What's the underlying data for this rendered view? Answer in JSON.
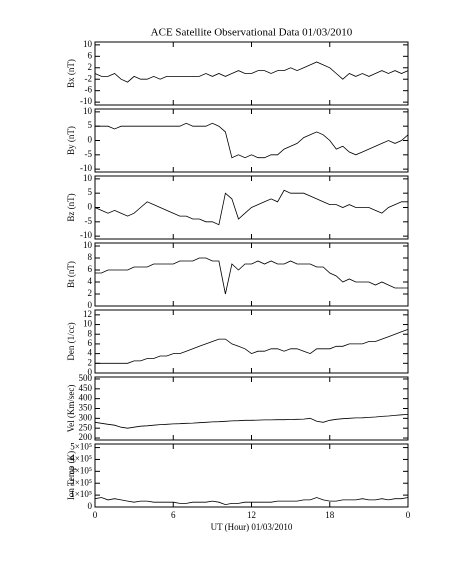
{
  "chart_data": [
    {
      "type": "line",
      "title": "ACE Satellite Observational Data   01/03/2010",
      "ylabel": "Bx (nT)",
      "ylim": [
        -11,
        11
      ],
      "yticks": [
        -10,
        -6,
        -2,
        2,
        6,
        10
      ],
      "x": [
        0,
        0.5,
        1,
        1.5,
        2,
        2.5,
        3,
        3.5,
        4,
        4.5,
        5,
        5.5,
        6,
        6.5,
        7,
        7.5,
        8,
        8.5,
        9,
        9.5,
        10,
        10.5,
        11,
        11.5,
        12,
        12.5,
        13,
        13.5,
        14,
        14.5,
        15,
        15.5,
        16,
        16.5,
        17,
        17.5,
        18,
        18.5,
        19,
        19.5,
        20,
        20.5,
        21,
        21.5,
        22,
        22.5,
        23,
        23.5,
        24
      ],
      "series": [
        {
          "name": "Bx",
          "color": "#000000",
          "values": [
            0,
            -1,
            -1,
            0,
            -2,
            -3,
            -1,
            -2,
            -2,
            -1,
            -2,
            -1,
            -1,
            -1,
            -1,
            -1,
            -1,
            0,
            -1,
            0,
            -1,
            0,
            1,
            0,
            0,
            1,
            1,
            0,
            1,
            1,
            2,
            1,
            2,
            3,
            4,
            3,
            2,
            0,
            -2,
            0,
            -1,
            0,
            -1,
            0,
            1,
            0,
            1,
            0,
            1
          ]
        }
      ]
    },
    {
      "type": "line",
      "ylabel": "By (nT)",
      "ylim": [
        -11,
        11
      ],
      "yticks": [
        -10,
        -5,
        0,
        5,
        10
      ],
      "x": [
        0,
        0.5,
        1,
        1.5,
        2,
        2.5,
        3,
        3.5,
        4,
        4.5,
        5,
        5.5,
        6,
        6.5,
        7,
        7.5,
        8,
        8.5,
        9,
        9.5,
        10,
        10.5,
        11,
        11.5,
        12,
        12.5,
        13,
        13.5,
        14,
        14.5,
        15,
        15.5,
        16,
        16.5,
        17,
        17.5,
        18,
        18.5,
        19,
        19.5,
        20,
        20.5,
        21,
        21.5,
        22,
        22.5,
        23,
        23.5,
        24
      ],
      "series": [
        {
          "name": "By",
          "color": "#000000",
          "values": [
            5,
            5,
            5,
            4,
            5,
            5,
            5,
            5,
            5,
            5,
            5,
            5,
            5,
            5,
            6,
            5,
            5,
            5,
            6,
            5,
            3,
            -6,
            -5,
            -6,
            -5,
            -6,
            -6,
            -5,
            -5,
            -3,
            -2,
            -1,
            1,
            2,
            3,
            2,
            0,
            -3,
            -2,
            -4,
            -5,
            -4,
            -3,
            -2,
            -1,
            0,
            -1,
            0,
            2
          ]
        }
      ]
    },
    {
      "type": "line",
      "ylabel": "Bz (nT)",
      "ylim": [
        -11,
        11
      ],
      "yticks": [
        -10,
        -5,
        0,
        5,
        10
      ],
      "x": [
        0,
        0.5,
        1,
        1.5,
        2,
        2.5,
        3,
        3.5,
        4,
        4.5,
        5,
        5.5,
        6,
        6.5,
        7,
        7.5,
        8,
        8.5,
        9,
        9.5,
        10,
        10.5,
        11,
        11.5,
        12,
        12.5,
        13,
        13.5,
        14,
        14.5,
        15,
        15.5,
        16,
        16.5,
        17,
        17.5,
        18,
        18.5,
        19,
        19.5,
        20,
        20.5,
        21,
        21.5,
        22,
        22.5,
        23,
        23.5,
        24
      ],
      "series": [
        {
          "name": "Bz",
          "color": "#000000",
          "values": [
            0,
            -1,
            -2,
            -1,
            -2,
            -3,
            -2,
            0,
            2,
            1,
            0,
            -1,
            -2,
            -3,
            -3,
            -4,
            -4,
            -5,
            -5,
            -6,
            5,
            3,
            -4,
            -2,
            0,
            1,
            2,
            3,
            2,
            6,
            5,
            5,
            5,
            4,
            3,
            2,
            1,
            1,
            0,
            1,
            0,
            0,
            0,
            -1,
            -2,
            0,
            1,
            2,
            2
          ]
        }
      ]
    },
    {
      "type": "line",
      "ylabel": "Bt (nT)",
      "ylim": [
        0,
        10.5
      ],
      "yticks": [
        0,
        2,
        4,
        6,
        8,
        10
      ],
      "x": [
        0,
        0.5,
        1,
        1.5,
        2,
        2.5,
        3,
        3.5,
        4,
        4.5,
        5,
        5.5,
        6,
        6.5,
        7,
        7.5,
        8,
        8.5,
        9,
        9.5,
        10,
        10.5,
        11,
        11.5,
        12,
        12.5,
        13,
        13.5,
        14,
        14.5,
        15,
        15.5,
        16,
        16.5,
        17,
        17.5,
        18,
        18.5,
        19,
        19.5,
        20,
        20.5,
        21,
        21.5,
        22,
        22.5,
        23,
        23.5,
        24
      ],
      "series": [
        {
          "name": "Bt",
          "color": "#000000",
          "values": [
            5.5,
            5.5,
            6,
            6,
            6,
            6,
            6.5,
            6.5,
            6.5,
            7,
            7,
            7,
            7,
            7.5,
            7.5,
            7.5,
            8,
            8,
            7.5,
            7.5,
            2,
            7,
            6,
            7,
            7,
            7.5,
            7,
            7.5,
            7,
            7,
            7.5,
            7,
            7,
            7,
            6.5,
            6.5,
            5.5,
            5,
            4,
            4.5,
            4,
            4,
            4,
            3.5,
            4,
            3.5,
            3,
            3,
            3
          ]
        }
      ]
    },
    {
      "type": "line",
      "ylabel": "Den (1/cc)",
      "ylim": [
        0,
        13
      ],
      "yticks": [
        0,
        2,
        4,
        6,
        8,
        10,
        12
      ],
      "x": [
        0,
        0.5,
        1,
        1.5,
        2,
        2.5,
        3,
        3.5,
        4,
        4.5,
        5,
        5.5,
        6,
        6.5,
        7,
        7.5,
        8,
        8.5,
        9,
        9.5,
        10,
        10.5,
        11,
        11.5,
        12,
        12.5,
        13,
        13.5,
        14,
        14.5,
        15,
        15.5,
        16,
        16.5,
        17,
        17.5,
        18,
        18.5,
        19,
        19.5,
        20,
        20.5,
        21,
        21.5,
        22,
        22.5,
        23,
        23.5,
        24
      ],
      "series": [
        {
          "name": "Den",
          "color": "#000000",
          "values": [
            2,
            2,
            2,
            2,
            2,
            2,
            2.5,
            2.5,
            3,
            3,
            3.5,
            3.5,
            4,
            4,
            4.5,
            5,
            5.5,
            6,
            6.5,
            7,
            7,
            6,
            5.5,
            5,
            4,
            4.5,
            4.5,
            5,
            5,
            4.5,
            5,
            5,
            4.5,
            4,
            5,
            5,
            5,
            5.5,
            5.5,
            6,
            6,
            6,
            6.5,
            6.5,
            7,
            7.5,
            8,
            8.5,
            9
          ]
        }
      ]
    },
    {
      "type": "line",
      "ylabel": "Vel (Km/sec)",
      "ylim": [
        190,
        510
      ],
      "yticks": [
        200,
        250,
        300,
        350,
        400,
        450,
        500
      ],
      "x": [
        0,
        0.5,
        1,
        1.5,
        2,
        2.5,
        3,
        3.5,
        4,
        4.5,
        5,
        5.5,
        6,
        6.5,
        7,
        7.5,
        8,
        8.5,
        9,
        9.5,
        10,
        10.5,
        11,
        11.5,
        12,
        12.5,
        13,
        13.5,
        14,
        14.5,
        15,
        15.5,
        16,
        16.5,
        17,
        17.5,
        18,
        18.5,
        19,
        19.5,
        20,
        20.5,
        21,
        21.5,
        22,
        22.5,
        23,
        23.5,
        24
      ],
      "series": [
        {
          "name": "Vel",
          "color": "#000000",
          "values": [
            280,
            275,
            270,
            265,
            255,
            250,
            255,
            260,
            262,
            265,
            268,
            270,
            272,
            273,
            275,
            276,
            278,
            280,
            282,
            283,
            285,
            287,
            288,
            290,
            290,
            291,
            292,
            292,
            293,
            293,
            294,
            295,
            296,
            300,
            285,
            280,
            290,
            295,
            298,
            300,
            302,
            303,
            305,
            307,
            310,
            312,
            315,
            318,
            320
          ]
        }
      ]
    },
    {
      "type": "line",
      "ylabel": "Ion Temp (K)",
      "xlabel": "UT (Hour)   01/03/2010",
      "ylim": [
        0,
        530000
      ],
      "yticks": [
        0,
        {
          "value": 100000,
          "label": "1×10⁵"
        },
        {
          "value": 200000,
          "label": "2×10⁵"
        },
        {
          "value": 300000,
          "label": "3×10⁵"
        },
        {
          "value": 400000,
          "label": "4×10⁵"
        },
        {
          "value": 500000,
          "label": "5×10⁵"
        }
      ],
      "xlim": [
        0,
        24
      ],
      "xticks": [
        0,
        6,
        12,
        18,
        {
          "value": 24,
          "label": "0"
        }
      ],
      "x": [
        0,
        0.5,
        1,
        1.5,
        2,
        2.5,
        3,
        3.5,
        4,
        4.5,
        5,
        5.5,
        6,
        6.5,
        7,
        7.5,
        8,
        8.5,
        9,
        9.5,
        10,
        10.5,
        11,
        11.5,
        12,
        12.5,
        13,
        13.5,
        14,
        14.5,
        15,
        15.5,
        16,
        16.5,
        17,
        17.5,
        18,
        18.5,
        19,
        19.5,
        20,
        20.5,
        21,
        21.5,
        22,
        22.5,
        23,
        23.5,
        24
      ],
      "series": [
        {
          "name": "Ion Temp",
          "color": "#000000",
          "values": [
            70000,
            80000,
            60000,
            70000,
            60000,
            50000,
            40000,
            50000,
            50000,
            40000,
            40000,
            40000,
            40000,
            30000,
            30000,
            40000,
            40000,
            40000,
            50000,
            40000,
            20000,
            30000,
            30000,
            40000,
            40000,
            40000,
            40000,
            40000,
            50000,
            50000,
            50000,
            50000,
            60000,
            60000,
            80000,
            60000,
            50000,
            50000,
            60000,
            60000,
            60000,
            70000,
            60000,
            60000,
            70000,
            60000,
            70000,
            70000,
            80000
          ]
        }
      ]
    }
  ]
}
